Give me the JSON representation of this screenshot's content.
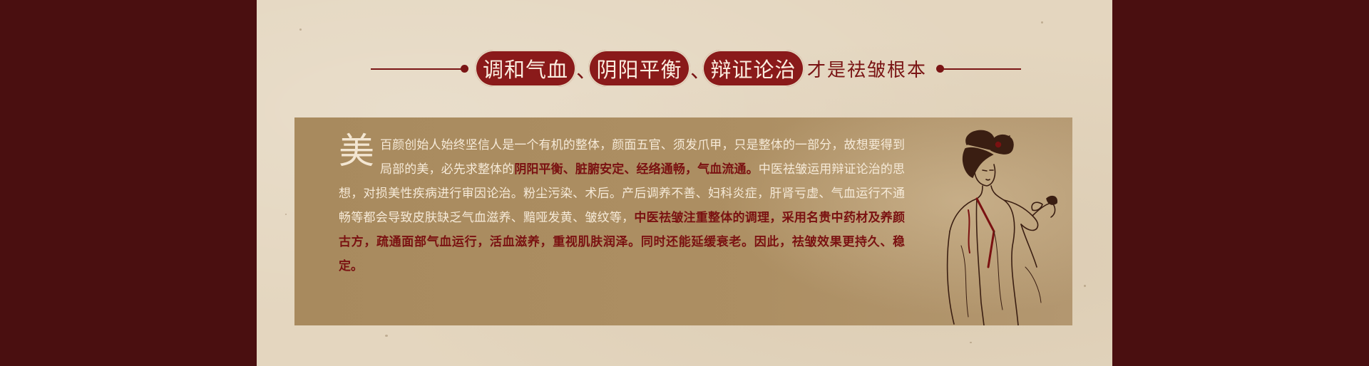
{
  "heading": {
    "pills": [
      "调和气血",
      "阴阳平衡",
      "辩证论治"
    ],
    "separator": "、",
    "tail": "才是祛皱根本"
  },
  "content": {
    "dropcap": "美",
    "segments": [
      {
        "text": "百颜创始人始终坚信人是一个有机的整体，颜面五官、须发爪甲，只是整体的一部分，故想要得到局部的美，必先求整体的",
        "highlight": false
      },
      {
        "text": "阴阳平衡、脏腑安定、经络通畅，气血流通。",
        "highlight": true
      },
      {
        "text": "中医祛皱运用辩证论治的思想，对损美性疾病进行审因论治。粉尘污染、术后。产后调养不善、妇科炎症，肝肾亏虚、气血运行不通畅等都会导致皮肤缺乏气血滋养、黯哑发黄、皱纹等，",
        "highlight": false
      },
      {
        "text": "中医祛皱注重整体的调理，采用名贵中药材及养颜古方，疏通面部气血运行，活血滋养，重视肌肤润泽。同时还能延缓衰老。因此，祛皱效果更持久、稳定。",
        "highlight": true
      }
    ]
  },
  "colors": {
    "background": "#4a0f10",
    "paper": "#e4d6bf",
    "accent": "#8a1a1a",
    "panel": "#a88a5e",
    "text": "#f6ead8",
    "highlight": "#7a1111"
  },
  "illustration": "ancient-chinese-lady-sketch"
}
